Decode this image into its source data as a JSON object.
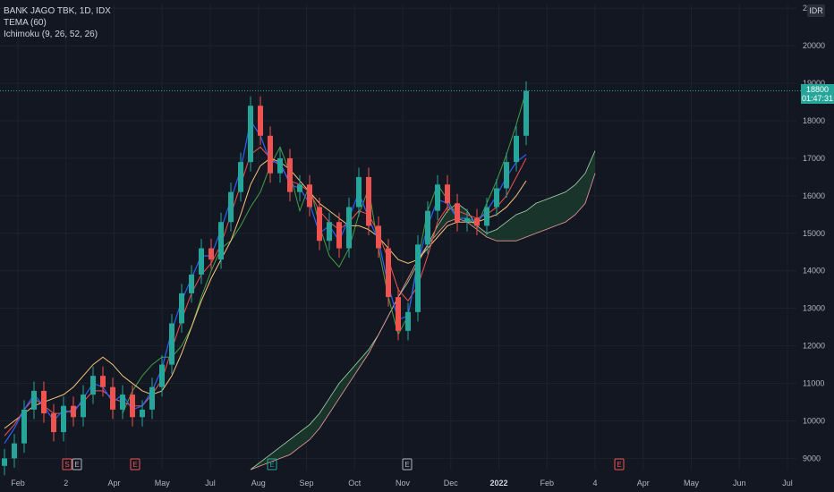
{
  "legend": {
    "symbol_line": "BANK JAGO TBK, 1D, IDX",
    "tema_label": "TEMA (60)",
    "ichimoku_label": "Ichimoku (9, 26, 52, 26)"
  },
  "currency": "IDR",
  "last_price": "18800",
  "countdown": "01:47:31",
  "colors": {
    "background": "#131722",
    "grid": "#1e222d",
    "up": "#26a69a",
    "down": "#ef5350",
    "tema": "#2962ff",
    "tenkan": "#ef5350",
    "kijun": "#f7c47a",
    "chikou": "#43a047",
    "cloud_up": "#1b3a2c",
    "cloud_down": "#3a1f24",
    "span_a": "#a5d6a7",
    "span_b": "#ef9a9a"
  },
  "events": [
    {
      "label": "S",
      "color": "#ef5350"
    },
    {
      "label": "E",
      "color": "#b2b5be"
    },
    {
      "label": "E",
      "color": "#ef5350"
    },
    {
      "label": "E",
      "color": "#26a69a"
    },
    {
      "label": "E",
      "color": "#b2b5be"
    },
    {
      "label": "E",
      "color": "#ef5350"
    }
  ],
  "chart_data": {
    "type": "line",
    "y_ticks": [
      9000,
      10000,
      11000,
      12000,
      13000,
      14000,
      15000,
      16000,
      17000,
      18000,
      19000,
      20000,
      21000
    ],
    "x_ticks": [
      "Feb",
      "2",
      "Apr",
      "May",
      "Jul",
      "Aug",
      "Sep",
      "Oct",
      "Nov",
      "Dec",
      "2022",
      "Feb",
      "4",
      "Apr",
      "May",
      "Jun",
      "Jul"
    ],
    "ylim": [
      8700,
      21100
    ],
    "series": [
      {
        "key": "close",
        "values": [
          9000,
          9400,
          10300,
          10800,
          10200,
          9700,
          10400,
          10100,
          10700,
          11200,
          10900,
          10300,
          10700,
          10100,
          10300,
          10900,
          11500,
          12600,
          13400,
          13900,
          14600,
          14300,
          15300,
          16100,
          16900,
          18400,
          17600,
          16600,
          17000,
          16100,
          16300,
          15700,
          14800,
          15300,
          14600,
          15700,
          16500,
          15200,
          14600,
          13300,
          12400,
          12900,
          14700,
          15600,
          16300,
          15800,
          15300,
          15400,
          15200,
          15700,
          16200,
          16900,
          17600,
          18800
        ]
      },
      {
        "key": "tema",
        "values": [
          9400,
          9800,
          10300,
          10700,
          10400,
          10000,
          10300,
          10200,
          10600,
          11000,
          10900,
          10500,
          10700,
          10300,
          10400,
          10800,
          11400,
          12400,
          13200,
          13800,
          14400,
          14400,
          15100,
          15900,
          16700,
          18000,
          17600,
          16900,
          16900,
          16300,
          16200,
          15800,
          15000,
          15200,
          14800,
          15400,
          16100,
          15400,
          14800,
          13600,
          12700,
          12800,
          14200,
          15200,
          15900,
          15800,
          15400,
          15400,
          15300,
          15600,
          16000,
          16500,
          16900,
          17100
        ]
      },
      {
        "key": "tenkan",
        "values": [
          9600,
          9900,
          10300,
          10600,
          10400,
          10200,
          10200,
          10300,
          10500,
          10800,
          10800,
          10600,
          10500,
          10400,
          10400,
          10700,
          11100,
          11900,
          12700,
          13400,
          13900,
          14200,
          14700,
          15500,
          16300,
          17100,
          17300,
          17000,
          16800,
          16400,
          16300,
          16100,
          15600,
          15300,
          15100,
          15300,
          15600,
          15500,
          15000,
          14300,
          13500,
          13200,
          13600,
          14400,
          15300,
          15700,
          15600,
          15500,
          15400,
          15500,
          15700,
          16000,
          16500,
          17000
        ]
      },
      {
        "key": "kijun",
        "values": [
          9800,
          10000,
          10200,
          10400,
          10500,
          10600,
          10700,
          10900,
          11200,
          11500,
          11700,
          11500,
          11200,
          11000,
          10800,
          10700,
          10800,
          11200,
          11800,
          12500,
          13200,
          13800,
          14300,
          14800,
          15500,
          16300,
          16800,
          17000,
          16900,
          16700,
          16400,
          16100,
          15800,
          15600,
          15400,
          15200,
          15200,
          15100,
          14900,
          14600,
          14300,
          14200,
          14300,
          14600,
          14900,
          15200,
          15300,
          15300,
          15300,
          15400,
          15500,
          15700,
          16000,
          16400
        ]
      },
      {
        "key": "chikou",
        "values": [
          10200,
          10800,
          11200,
          11500,
          11700,
          11700,
          12000,
          12500,
          13300,
          14000,
          14600,
          14800,
          15200,
          15700,
          16100,
          16800,
          17300,
          16600,
          15600,
          16300,
          15200,
          14400,
          14100,
          14600,
          15500,
          16200,
          14600,
          13300,
          12300,
          12800,
          14300,
          15600,
          16300,
          15900,
          15400,
          15400,
          15200,
          15800,
          16400,
          17100,
          17900,
          18800
        ]
      },
      {
        "key": "span_a",
        "values": [
          8700,
          8900,
          9100,
          9300,
          9500,
          9700,
          9900,
          10200,
          10600,
          11000,
          11300,
          11600,
          11900,
          12300,
          12800,
          13300,
          13700,
          14200,
          14700,
          15200,
          15600,
          15800,
          15600,
          15200,
          15000,
          15100,
          15300,
          15500,
          15600,
          15800,
          15900,
          16000,
          16100,
          16300,
          16600,
          17200
        ]
      },
      {
        "key": "span_b",
        "values": [
          8700,
          8800,
          8900,
          9000,
          9100,
          9300,
          9500,
          9800,
          10200,
          10600,
          11000,
          11400,
          11800,
          12300,
          12800,
          13300,
          13800,
          14300,
          14700,
          15000,
          15300,
          15400,
          15300,
          15100,
          14900,
          14800,
          14800,
          14800,
          14900,
          15000,
          15100,
          15200,
          15300,
          15500,
          15800,
          16600
        ]
      },
      {
        "key": "last_price_line",
        "values": [
          18800
        ]
      }
    ]
  }
}
